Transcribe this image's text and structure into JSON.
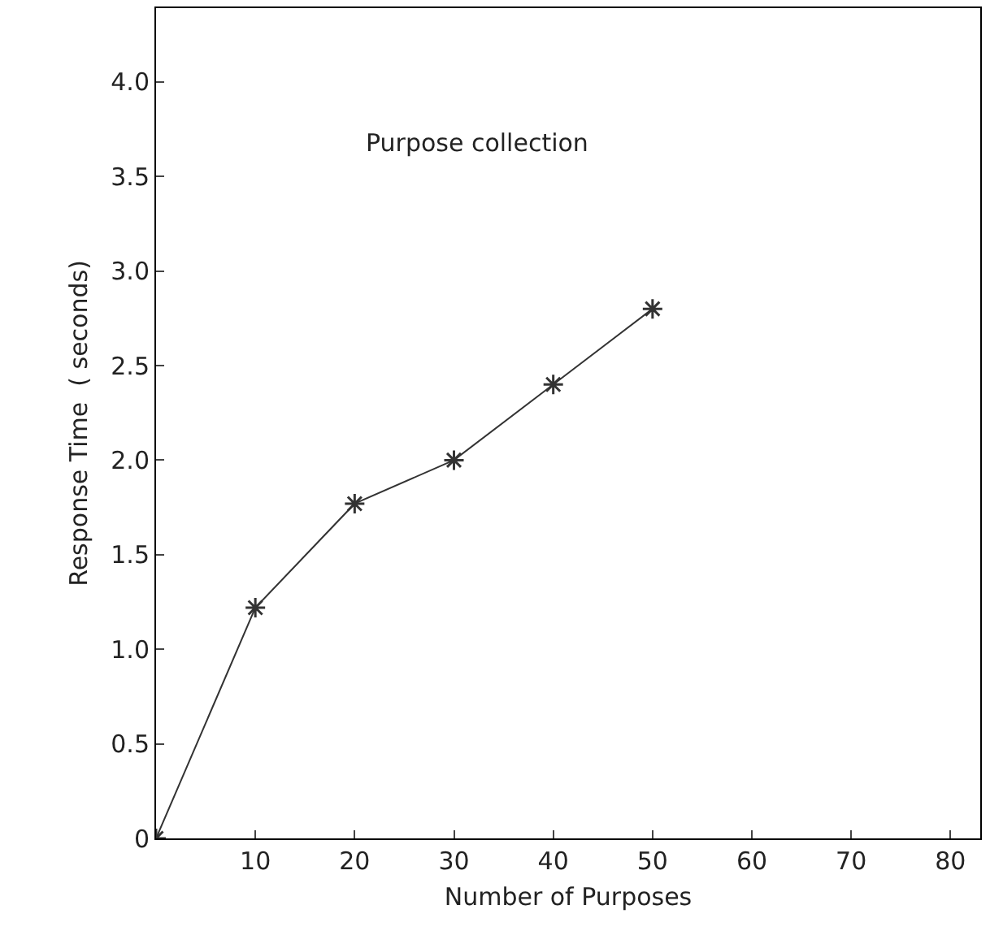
{
  "chart_data": {
    "type": "line",
    "xlabel": "Number of Purposes",
    "ylabel": "Response Time  ( seconds)",
    "annotations": [
      "Purpose collection"
    ],
    "x": [
      0,
      10,
      20,
      30,
      40,
      50
    ],
    "series": [
      {
        "color": "#333333",
        "values": [
          0,
          1.22,
          1.77,
          2.0,
          2.4,
          2.8
        ]
      }
    ],
    "xlim": [
      0,
      83
    ],
    "xticks": [
      10,
      20,
      30,
      40,
      50,
      60,
      70,
      80
    ],
    "ylim": [
      0,
      4.39
    ],
    "yticks": [
      0,
      {
        "value": 0.5,
        "label": "0.5"
      },
      {
        "value": 1,
        "label": "1.0"
      },
      {
        "value": 1.5,
        "label": "1.5"
      },
      {
        "value": 2,
        "label": "2.0"
      },
      {
        "value": 2.5,
        "label": "2.5"
      },
      {
        "value": 3,
        "label": "3.0"
      },
      {
        "value": 3.5,
        "label": "3.5"
      },
      {
        "value": 4,
        "label": "4.0"
      }
    ],
    "grid": false,
    "marker": "cross",
    "line_style": "solid"
  }
}
